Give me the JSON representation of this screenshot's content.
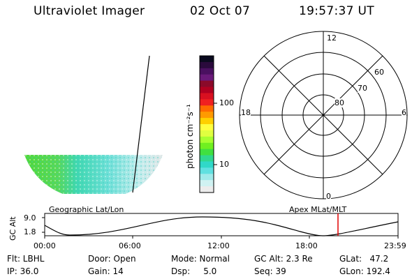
{
  "header": {
    "title": "Ultraviolet Imager",
    "date": "02 Oct 07",
    "time": "19:57:37 UT"
  },
  "colorbar": {
    "label": "photon cm⁻²s⁻¹",
    "ticks": [
      "100",
      "10"
    ],
    "colors": [
      "#0a0a1e",
      "#2a0a3c",
      "#4a1060",
      "#6a1a7a",
      "#8a0a2a",
      "#b00020",
      "#d81020",
      "#f02020",
      "#ff6a00",
      "#ff9a00",
      "#ffd000",
      "#ffff40",
      "#e0ff40",
      "#a8ff30",
      "#70f020",
      "#40e040",
      "#30d890",
      "#30d8c8",
      "#60e0e0",
      "#a0eaea",
      "#d0f2f2",
      "#ececec"
    ]
  },
  "polar_plot": {
    "mlt_labels": [
      "12",
      "18",
      "6",
      "0"
    ],
    "lat_labels": [
      "60",
      "70",
      "80"
    ]
  },
  "timeline": {
    "left_label": "Geographic Lat/Lon",
    "right_label": "Apex MLat/MLT",
    "y_axis_label": "GC Alt",
    "y_ticks": [
      "9.0",
      "1.8"
    ],
    "x_ticks": [
      "00:00",
      "06:00",
      "12:00",
      "18:00",
      "23:59"
    ],
    "marker_color": "#e00000"
  },
  "status": {
    "flt": "Flt: LBHL",
    "ip": "IP: 36.0",
    "door": "Door: Open",
    "gain": "Gain: 14",
    "mode": "Mode: Normal",
    "dsp": "Dsp:     5.0",
    "gc_alt": "GC Alt: 2.3 Re",
    "seq": "Seq: 39",
    "glat": "GLat:   47.2",
    "glon": "GLon: 192.4"
  }
}
